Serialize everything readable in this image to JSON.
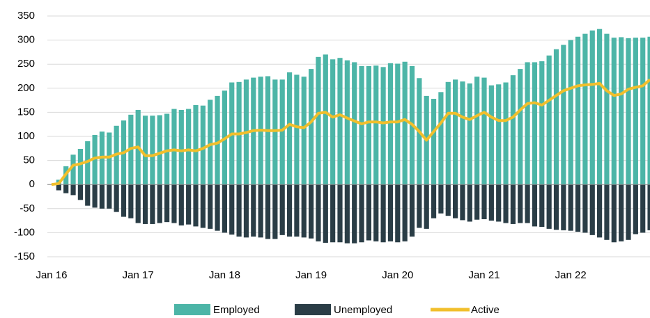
{
  "chart_data": {
    "type": "bar_line",
    "categories": [
      "Jan 16",
      null,
      null,
      null,
      null,
      null,
      null,
      null,
      null,
      null,
      null,
      null,
      "Jan 17",
      null,
      null,
      null,
      null,
      null,
      null,
      null,
      null,
      null,
      null,
      null,
      "Jan 18",
      null,
      null,
      null,
      null,
      null,
      null,
      null,
      null,
      null,
      null,
      null,
      "Jan 19",
      null,
      null,
      null,
      null,
      null,
      null,
      null,
      null,
      null,
      null,
      null,
      "Jan 20",
      null,
      null,
      null,
      null,
      null,
      null,
      null,
      null,
      null,
      null,
      null,
      "Jan 21",
      null,
      null,
      null,
      null,
      null,
      null,
      null,
      null,
      null,
      null,
      null,
      "Jan 22",
      null,
      null,
      null,
      null,
      null,
      null,
      null,
      null,
      null,
      null,
      null
    ],
    "series": [
      {
        "name": "Employed",
        "color": "#4cb5a7",
        "kind": "bar",
        "values": [
          0,
          10,
          38,
          62,
          74,
          90,
          103,
          110,
          108,
          122,
          133,
          145,
          155,
          143,
          143,
          144,
          147,
          157,
          155,
          157,
          165,
          164,
          176,
          184,
          195,
          212,
          213,
          218,
          222,
          224,
          225,
          218,
          218,
          233,
          228,
          224,
          240,
          265,
          270,
          260,
          263,
          258,
          254,
          246,
          246,
          247,
          244,
          252,
          251,
          255,
          246,
          221,
          184,
          178,
          192,
          213,
          218,
          214,
          210,
          224,
          222,
          206,
          208,
          212,
          227,
          240,
          254,
          254,
          256,
          268,
          281,
          290,
          300,
          307,
          313,
          320,
          323,
          313,
          305,
          306,
          304,
          305,
          305,
          307
        ]
      },
      {
        "name": "Unemployed",
        "color": "#2a3d46",
        "kind": "bar",
        "values": [
          0,
          -12,
          -18,
          -22,
          -32,
          -44,
          -48,
          -50,
          -50,
          -57,
          -67,
          -70,
          -80,
          -82,
          -82,
          -80,
          -78,
          -80,
          -85,
          -83,
          -87,
          -90,
          -92,
          -96,
          -100,
          -104,
          -108,
          -110,
          -108,
          -110,
          -113,
          -113,
          -105,
          -108,
          -108,
          -110,
          -112,
          -118,
          -121,
          -120,
          -120,
          -122,
          -122,
          -120,
          -116,
          -118,
          -120,
          -118,
          -120,
          -118,
          -108,
          -90,
          -92,
          -70,
          -60,
          -65,
          -70,
          -74,
          -77,
          -73,
          -72,
          -75,
          -77,
          -80,
          -82,
          -80,
          -80,
          -87,
          -88,
          -92,
          -94,
          -95,
          -96,
          -98,
          -100,
          -105,
          -110,
          -115,
          -120,
          -118,
          -115,
          -103,
          -100,
          -95
        ]
      },
      {
        "name": "Active",
        "color": "#f1bf2c",
        "kind": "line",
        "values": [
          0,
          2,
          22,
          40,
          43,
          48,
          55,
          57,
          57,
          63,
          66,
          75,
          78,
          60,
          60,
          65,
          70,
          72,
          70,
          72,
          70,
          75,
          83,
          86,
          95,
          105,
          105,
          108,
          112,
          113,
          112,
          112,
          113,
          125,
          120,
          118,
          130,
          148,
          150,
          140,
          145,
          138,
          132,
          126,
          130,
          130,
          128,
          130,
          130,
          135,
          125,
          110,
          92,
          110,
          128,
          148,
          148,
          140,
          135,
          143,
          150,
          140,
          133,
          133,
          140,
          155,
          168,
          170,
          165,
          175,
          185,
          195,
          200,
          205,
          207,
          208,
          210,
          195,
          185,
          188,
          198,
          202,
          205,
          218
        ]
      }
    ],
    "ylim": [
      -150,
      350
    ],
    "yticks": [
      -150,
      -100,
      -50,
      0,
      50,
      100,
      150,
      200,
      250,
      300,
      350
    ],
    "grid": true,
    "legend": "bottom"
  }
}
